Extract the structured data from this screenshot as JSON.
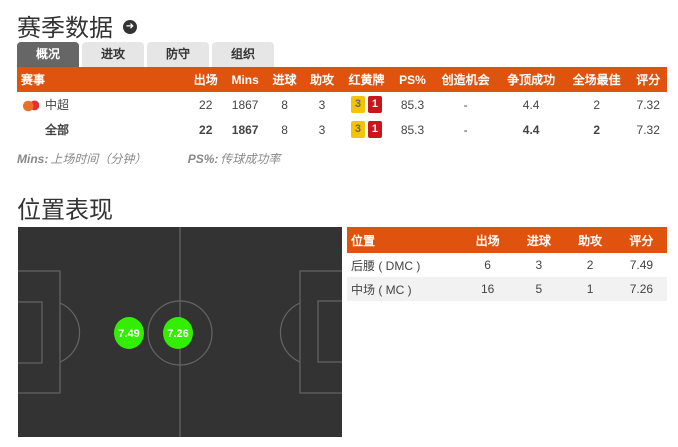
{
  "season": {
    "title": "赛季数据",
    "title_icon": "arrow-right-circle-icon",
    "tabs": [
      "概况",
      "进攻",
      "防守",
      "组织"
    ],
    "active_tab": 0,
    "headers": [
      "赛事",
      "出场",
      "Mins",
      "进球",
      "助攻",
      "红黄牌",
      "PS%",
      "创造机会",
      "争顶成功",
      "全场最佳",
      "评分"
    ],
    "rows": [
      {
        "competition": "中超",
        "apps": "22",
        "mins": "1867",
        "goals": "8",
        "assists": "3",
        "yellow": "3",
        "red": "1",
        "ps": "85.3",
        "chances": "-",
        "aerials": "4.4",
        "motm": "2",
        "rating": "7.32"
      },
      {
        "competition": "全部",
        "apps": "22",
        "mins": "1867",
        "goals": "8",
        "assists": "3",
        "yellow": "3",
        "red": "1",
        "ps": "85.3",
        "chances": "-",
        "aerials": "4.4",
        "motm": "2",
        "rating": "7.32"
      }
    ],
    "notes": [
      {
        "key": "Mins:",
        "text": "上场时间（分钟）"
      },
      {
        "key": "PS%:",
        "text": "传球成功率"
      }
    ]
  },
  "position": {
    "title": "位置表现",
    "headers": [
      "位置",
      "出场",
      "进球",
      "助攻",
      "评分"
    ],
    "rows": [
      {
        "pos": "后腰 ( DMC )",
        "apps": "6",
        "goals": "3",
        "assists": "2",
        "rating": "7.49"
      },
      {
        "pos": "中场 ( MC )",
        "apps": "16",
        "goals": "5",
        "assists": "1",
        "rating": "7.26"
      }
    ],
    "pitch_markers": [
      "7.49",
      "7.26"
    ]
  },
  "colors": {
    "accent": "#e0530f",
    "marker": "#33ee00",
    "pitch": "#333333"
  }
}
